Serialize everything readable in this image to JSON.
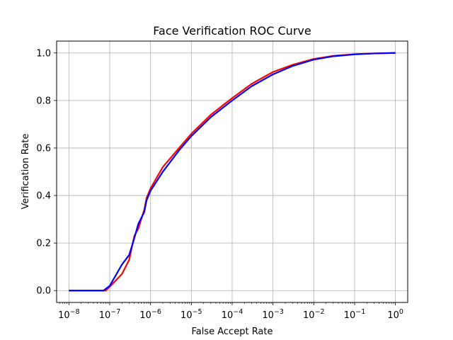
{
  "chart_data": {
    "type": "line",
    "title": "Face Verification ROC Curve",
    "xlabel": "False Accept Rate",
    "ylabel": "Verification Rate",
    "x_scale": "log",
    "xlim": [
      5e-09,
      2
    ],
    "ylim": [
      -0.05,
      1.05
    ],
    "grid": true,
    "x_ticks": [
      {
        "value": 1e-08,
        "base": "10",
        "exp": "−8"
      },
      {
        "value": 1e-07,
        "base": "10",
        "exp": "−7"
      },
      {
        "value": 1e-06,
        "base": "10",
        "exp": "−6"
      },
      {
        "value": 1e-05,
        "base": "10",
        "exp": "−5"
      },
      {
        "value": 0.0001,
        "base": "10",
        "exp": "−4"
      },
      {
        "value": 0.001,
        "base": "10",
        "exp": "−3"
      },
      {
        "value": 0.01,
        "base": "10",
        "exp": "−2"
      },
      {
        "value": 0.1,
        "base": "10",
        "exp": "−1"
      },
      {
        "value": 1,
        "base": "10",
        "exp": "0"
      }
    ],
    "y_ticks": [
      {
        "value": 0.0,
        "label": "0.0"
      },
      {
        "value": 0.2,
        "label": "0.2"
      },
      {
        "value": 0.4,
        "label": "0.4"
      },
      {
        "value": 0.6,
        "label": "0.6"
      },
      {
        "value": 0.8,
        "label": "0.8"
      },
      {
        "value": 1.0,
        "label": "1.0"
      }
    ],
    "series": [
      {
        "color": "#ff0000",
        "x": [
          1e-08,
          5e-08,
          8e-08,
          1.2e-07,
          2e-07,
          3e-07,
          4e-07,
          5e-07,
          7e-07,
          8e-07,
          1e-06,
          2e-06,
          5e-06,
          1e-05,
          3e-05,
          0.0001,
          0.0003,
          0.001,
          0.003,
          0.01,
          0.03,
          0.1,
          0.3,
          1
        ],
        "y": [
          0.0,
          0.0,
          0.0,
          0.03,
          0.07,
          0.13,
          0.23,
          0.26,
          0.34,
          0.39,
          0.43,
          0.52,
          0.6,
          0.66,
          0.74,
          0.81,
          0.87,
          0.92,
          0.95,
          0.975,
          0.988,
          0.995,
          0.998,
          1.0
        ]
      },
      {
        "color": "#0000ff",
        "x": [
          1e-08,
          5e-08,
          7e-08,
          1e-07,
          2e-07,
          3e-07,
          4e-07,
          5e-07,
          7e-07,
          8e-07,
          1e-06,
          2e-06,
          5e-06,
          1e-05,
          3e-05,
          0.0001,
          0.0003,
          0.001,
          0.003,
          0.01,
          0.03,
          0.1,
          0.3,
          1
        ],
        "y": [
          0.0,
          0.0,
          0.0,
          0.02,
          0.11,
          0.15,
          0.22,
          0.28,
          0.33,
          0.38,
          0.42,
          0.5,
          0.59,
          0.65,
          0.73,
          0.8,
          0.86,
          0.91,
          0.945,
          0.972,
          0.986,
          0.994,
          0.998,
          1.0
        ]
      }
    ]
  }
}
